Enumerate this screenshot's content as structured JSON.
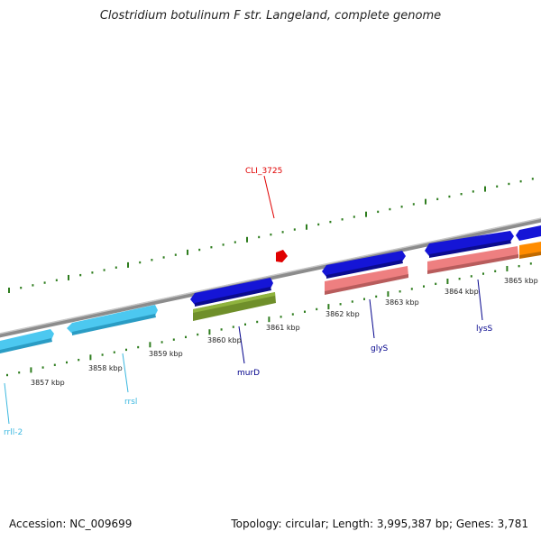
{
  "title": "Clostridium botulinum F str. Langeland, complete genome",
  "footer": {
    "accession": "Accession: NC_009699",
    "topology": "Topology: circular; Length: 3,995,387 bp; Genes: 3,781"
  },
  "colors": {
    "backbone": "#8c8c8c",
    "tick": "#2e7d1e",
    "cds_blue": "#1515d6",
    "rrna": "#4cc8f0",
    "trna_olive": "#6f8f2a",
    "salmon": "#ee7f80",
    "orange": "#ff8c00",
    "highlight": "#e00000",
    "label_dark": "#00008b",
    "label_cyan": "#3cb8e0"
  },
  "kbp_labels": [
    "3857 kbp",
    "3858 kbp",
    "3859 kbp",
    "3860 kbp",
    "3861 kbp",
    "3862 kbp",
    "3863 kbp",
    "3864 kbp",
    "3865 kbp"
  ],
  "features": [
    {
      "label": "rrll-2",
      "kind": "rrna"
    },
    {
      "label": "rrsl",
      "kind": "rrna"
    },
    {
      "label": "murD",
      "kind": "cds"
    },
    {
      "label": "glyS",
      "kind": "cds"
    },
    {
      "label": "lysS",
      "kind": "cds"
    },
    {
      "label": "CLI_3725",
      "kind": "highlight"
    }
  ]
}
